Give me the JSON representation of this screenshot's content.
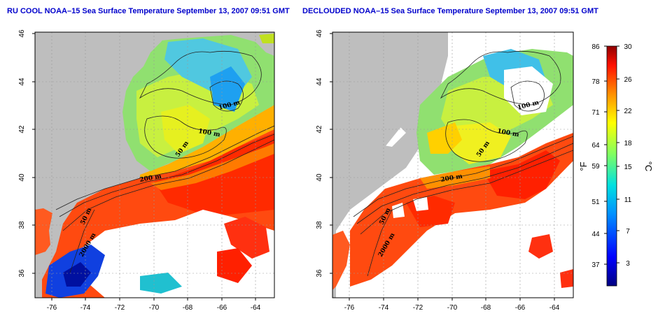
{
  "panels": [
    {
      "id": "ru-cool",
      "title": "RU COOL NOAA–15 Sea Surface Temperature September 13, 2007 09:51 GMT"
    },
    {
      "id": "declouded",
      "title": "DECLOUDED NOAA–15 Sea Surface Temperature September 13, 2007 09:51 GMT"
    }
  ],
  "axes": {
    "lon_ticks": [
      "-76",
      "-74",
      "-72",
      "-70",
      "-68",
      "-66",
      "-64"
    ],
    "lat_ticks": [
      "46",
      "44",
      "42",
      "40",
      "38",
      "36"
    ]
  },
  "contour_labels": {
    "ru-cool": [
      "100 m",
      "100 m",
      "50 m",
      "200 m",
      "50 m",
      "2000 m"
    ],
    "declouded": [
      "100 m",
      "100 m",
      "50 m",
      "200 m",
      "50 m",
      "2000 m"
    ]
  },
  "colorbar": {
    "fahrenheit_ticks": [
      "86",
      "78",
      "71",
      "64",
      "59",
      "51",
      "44",
      "37"
    ],
    "celsius_ticks": [
      "30",
      "26",
      "22",
      "18",
      "15",
      "11",
      "7",
      "3"
    ],
    "fahrenheit_unit": "°F",
    "celsius_unit": "°C",
    "colors": [
      "#000080",
      "#0000ff",
      "#0080ff",
      "#00ffff",
      "#80ff80",
      "#ffff00",
      "#ff8000",
      "#ff0000",
      "#800000"
    ]
  }
}
